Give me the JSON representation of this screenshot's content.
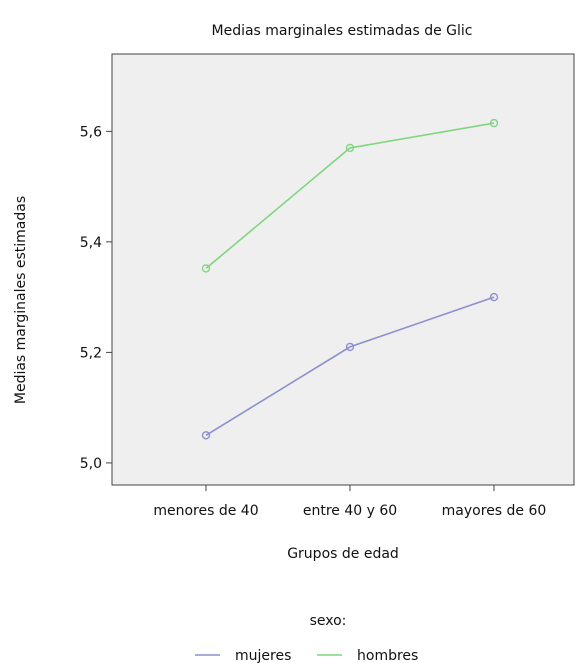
{
  "chart_data": {
    "type": "line",
    "title": "Medias marginales estimadas de Glic",
    "xlabel": "Grupos de edad",
    "ylabel": "Medias marginales estimadas",
    "categories": [
      "menores de 40",
      "entre 40 y 60",
      "mayores de 60"
    ],
    "ylim": [
      4.96,
      5.74
    ],
    "yticks": [
      5.0,
      5.2,
      5.4,
      5.6
    ],
    "ytick_labels": [
      "5,0",
      "5,2",
      "5,4",
      "5,6"
    ],
    "grid": false,
    "legend_position": "bottom",
    "legend_title": "sexo:",
    "series": [
      {
        "name": "mujeres",
        "values": [
          5.05,
          5.21,
          5.3
        ],
        "color": "#8c8fd0"
      },
      {
        "name": "hombres",
        "values": [
          5.352,
          5.57,
          5.615
        ],
        "color": "#7fd67f"
      }
    ],
    "plot_background": "#efefef"
  }
}
